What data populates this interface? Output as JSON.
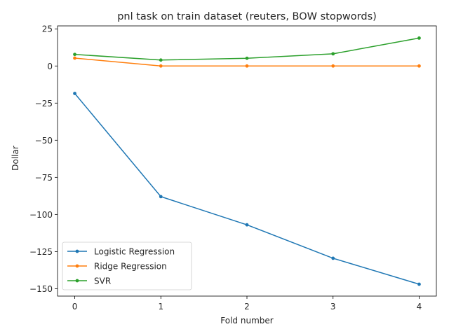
{
  "chart_data": {
    "type": "line",
    "title": "pnl task on train dataset (reuters, BOW stopwords)",
    "xlabel": "Fold number",
    "ylabel": "Dollar",
    "x": [
      0,
      1,
      2,
      3,
      4
    ],
    "xlim": [
      -0.2,
      4.2
    ],
    "ylim": [
      -155,
      27
    ],
    "xticks": [
      0,
      1,
      2,
      3,
      4
    ],
    "yticks": [
      25,
      0,
      -25,
      -50,
      -75,
      -100,
      -125,
      -150
    ],
    "ytick_labels": [
      "25",
      "0",
      "−25",
      "−50",
      "−75",
      "−100",
      "−125",
      "−150"
    ],
    "grid": false,
    "legend_position": "lower-left",
    "series": [
      {
        "name": "Logistic Regression",
        "color": "#1f77b4",
        "values": [
          -18.5,
          -88,
          -107,
          -129.5,
          -147
        ]
      },
      {
        "name": "Ridge Regression",
        "color": "#ff7f0e",
        "values": [
          5.3,
          0,
          0,
          0,
          0
        ]
      },
      {
        "name": "SVR",
        "color": "#2ca02c",
        "values": [
          7.8,
          4.0,
          5.2,
          8.2,
          18.8
        ]
      }
    ]
  }
}
